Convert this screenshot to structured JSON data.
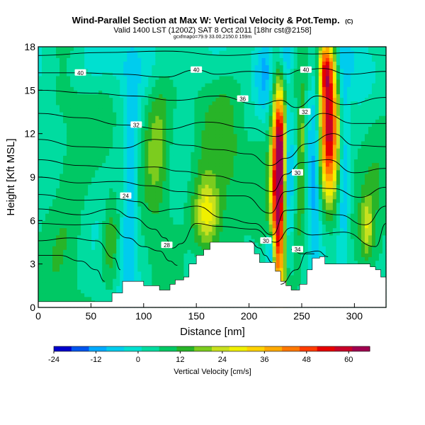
{
  "chart_data": {
    "type": "heatmap",
    "title": "Wind-Parallel Section at Max W: Vertical Velocity & Pot.Temp.",
    "title_mark": "(C)",
    "subtitle": "Valid 1400 LST (1200Z) SAT 8 Oct 2011 [18hr cst@2158]",
    "subtitle2": "gcxfmapo=79.9 33.00,2150.0 159m",
    "xlabel": "Distance [nm]",
    "ylabel": "Height [Kft MSL]",
    "xlim": [
      0,
      330
    ],
    "ylim": [
      0,
      18
    ],
    "xticks": [
      "0",
      "50",
      "100",
      "150",
      "200",
      "250",
      "300"
    ],
    "yticks": [
      "0",
      "3",
      "6",
      "9",
      "12",
      "15",
      "18"
    ],
    "colorbar": {
      "label": "Vertical Velocity [cm/s]",
      "range": [
        -24,
        66
      ],
      "ticks": [
        "-24",
        "-12",
        "0",
        "12",
        "24",
        "36",
        "48",
        "60"
      ],
      "colors": [
        "#0000cc",
        "#0055ee",
        "#00aaff",
        "#00ccee",
        "#00e0d0",
        "#00dca0",
        "#00c864",
        "#28b428",
        "#7ccc1e",
        "#c8e01e",
        "#f0f000",
        "#ffd200",
        "#ffaa00",
        "#ff7800",
        "#ff3c00",
        "#e60000",
        "#c80028",
        "#a00050"
      ]
    },
    "terrain": [
      [
        0,
        0.4
      ],
      [
        5,
        0.4
      ],
      [
        10,
        0.4
      ],
      [
        65,
        0.4
      ],
      [
        70,
        1.0
      ],
      [
        80,
        1.8
      ],
      [
        95,
        1.8
      ],
      [
        100,
        1.5
      ],
      [
        110,
        1.5
      ],
      [
        115,
        1.2
      ],
      [
        125,
        1.6
      ],
      [
        130,
        1.9
      ],
      [
        138,
        2.1
      ],
      [
        143,
        3.0
      ],
      [
        150,
        3.6
      ],
      [
        157,
        4.0
      ],
      [
        163,
        4.5
      ],
      [
        180,
        4.5
      ],
      [
        200,
        4.5
      ],
      [
        205,
        3.7
      ],
      [
        210,
        3.1
      ],
      [
        220,
        3.1
      ],
      [
        225,
        2.5
      ],
      [
        230,
        1.8
      ],
      [
        235,
        1.5
      ],
      [
        240,
        1.2
      ],
      [
        248,
        1.6
      ],
      [
        255,
        2.6
      ],
      [
        260,
        3.4
      ],
      [
        267,
        3.5
      ],
      [
        272,
        3.0
      ],
      [
        305,
        3.0
      ],
      [
        315,
        2.8
      ],
      [
        320,
        2.6
      ],
      [
        325,
        2.1
      ],
      [
        330,
        1.9
      ]
    ],
    "updrafts": [
      {
        "x": 228,
        "z": 7.5,
        "sx": 5,
        "sz": 4.5,
        "w": 62
      },
      {
        "x": 230,
        "z": 11.5,
        "sx": 4,
        "sz": 2.5,
        "w": 28
      },
      {
        "x": 276,
        "z": 12.2,
        "sx": 6,
        "sz": 3.5,
        "w": 50
      },
      {
        "x": 273,
        "z": 16.5,
        "sx": 5,
        "sz": 1.5,
        "w": 36
      },
      {
        "x": 250,
        "z": 11.5,
        "sx": 2.5,
        "sz": 2.5,
        "w": 16
      },
      {
        "x": 248,
        "z": 7,
        "sx": 3,
        "sz": 2,
        "w": 10
      },
      {
        "x": 160,
        "z": 6.3,
        "sx": 9,
        "sz": 1.8,
        "w": 26
      },
      {
        "x": 113,
        "z": 11,
        "sx": 9,
        "sz": 3.5,
        "w": 16
      },
      {
        "x": 68,
        "z": 4.5,
        "sx": 5,
        "sz": 2,
        "w": 12
      },
      {
        "x": 312,
        "z": 5.5,
        "sx": 4,
        "sz": 1.5,
        "w": 16
      },
      {
        "x": 30,
        "z": 9,
        "sx": 14,
        "sz": 6,
        "w": 7
      },
      {
        "x": 180,
        "z": 11,
        "sx": 25,
        "sz": 4,
        "w": 7
      },
      {
        "x": 320,
        "z": 12,
        "sx": 12,
        "sz": 4,
        "w": 7
      }
    ],
    "downdrafts": [
      {
        "x": 236,
        "z": 9,
        "sx": 3.5,
        "sz": 5,
        "w": -20
      },
      {
        "x": 221,
        "z": 3.8,
        "sx": 3,
        "sz": 1,
        "w": -26
      },
      {
        "x": 262,
        "z": 10,
        "sx": 4,
        "sz": 5,
        "w": -16
      },
      {
        "x": 290,
        "z": 10,
        "sx": 3.5,
        "sz": 5,
        "w": -14
      },
      {
        "x": 88,
        "z": 9,
        "sx": 5,
        "sz": 5,
        "w": -14
      },
      {
        "x": 82,
        "z": 4,
        "sx": 4,
        "sz": 2.5,
        "w": -8
      },
      {
        "x": 215,
        "z": 16,
        "sx": 6,
        "sz": 2,
        "w": -12
      },
      {
        "x": 235,
        "z": 17.5,
        "sx": 6,
        "sz": 1,
        "w": -12
      },
      {
        "x": 50,
        "z": 17,
        "sx": 30,
        "sz": 1.5,
        "w": -6
      },
      {
        "x": 140,
        "z": 17,
        "sx": 40,
        "sz": 1.5,
        "w": -4
      },
      {
        "x": 198,
        "z": 7.5,
        "sx": 6,
        "sz": 3,
        "w": -5
      },
      {
        "x": 300,
        "z": 16.5,
        "sx": 15,
        "sz": 2,
        "w": -8
      }
    ],
    "isentropes": [
      {
        "label": "40",
        "points": [
          [
            0,
            16.2
          ],
          [
            40,
            16.2
          ],
          [
            80,
            16.1
          ],
          [
            120,
            15.9
          ],
          [
            150,
            16.4
          ],
          [
            170,
            16.1
          ],
          [
            200,
            16.3
          ],
          [
            235,
            16.1
          ],
          [
            250,
            16.4
          ],
          [
            270,
            16.5
          ],
          [
            295,
            16.1
          ],
          [
            330,
            16.3
          ]
        ]
      },
      {
        "label": "",
        "points": [
          [
            0,
            17.4
          ],
          [
            60,
            17.6
          ],
          [
            120,
            17.7
          ],
          [
            180,
            17.4
          ],
          [
            230,
            17.6
          ],
          [
            260,
            17.5
          ],
          [
            300,
            17.6
          ],
          [
            330,
            17.4
          ]
        ]
      },
      {
        "label": "36",
        "points": [
          [
            0,
            15.0
          ],
          [
            50,
            14.8
          ],
          [
            90,
            14.6
          ],
          [
            130,
            14.3
          ],
          [
            170,
            14.6
          ],
          [
            210,
            14.0
          ],
          [
            230,
            14.3
          ],
          [
            245,
            13.8
          ],
          [
            265,
            14.6
          ],
          [
            290,
            14.0
          ],
          [
            330,
            14.5
          ]
        ]
      },
      {
        "label": "",
        "points": [
          [
            0,
            13.4
          ],
          [
            40,
            13.1
          ],
          [
            80,
            12.6
          ],
          [
            120,
            12.3
          ],
          [
            160,
            12.8
          ],
          [
            200,
            12.4
          ],
          [
            225,
            11.8
          ],
          [
            245,
            12.3
          ],
          [
            270,
            13.4
          ],
          [
            300,
            12.7
          ],
          [
            330,
            12.7
          ]
        ]
      },
      {
        "label": "32",
        "points": [
          [
            0,
            11.6
          ],
          [
            40,
            11.1
          ],
          [
            80,
            11.0
          ],
          [
            110,
            11.6
          ],
          [
            140,
            11.2
          ],
          [
            170,
            10.9
          ],
          [
            200,
            10.6
          ],
          [
            220,
            9.8
          ],
          [
            235,
            10.3
          ],
          [
            255,
            11.3
          ],
          [
            280,
            12.0
          ],
          [
            300,
            11.2
          ],
          [
            330,
            11.1
          ]
        ]
      },
      {
        "label": "",
        "points": [
          [
            0,
            10.2
          ],
          [
            40,
            9.8
          ],
          [
            80,
            9.6
          ],
          [
            110,
            9.7
          ],
          [
            135,
            9.4
          ],
          [
            165,
            9.1
          ],
          [
            200,
            8.6
          ],
          [
            222,
            8.0
          ],
          [
            235,
            9.2
          ],
          [
            250,
            10.0
          ],
          [
            275,
            10.2
          ],
          [
            300,
            9.3
          ],
          [
            330,
            9.6
          ]
        ]
      },
      {
        "label": "",
        "points": [
          [
            0,
            9.0
          ],
          [
            40,
            8.6
          ],
          [
            75,
            8.7
          ],
          [
            105,
            8.4
          ],
          [
            135,
            8.0
          ],
          [
            165,
            7.7
          ],
          [
            195,
            7.7
          ],
          [
            220,
            6.5
          ],
          [
            235,
            8.0
          ],
          [
            255,
            8.3
          ],
          [
            280,
            8.2
          ],
          [
            305,
            7.6
          ],
          [
            330,
            8.3
          ]
        ]
      },
      {
        "label": "24",
        "points": [
          [
            0,
            7.8
          ],
          [
            40,
            7.4
          ],
          [
            75,
            7.5
          ],
          [
            95,
            7.3
          ],
          [
            110,
            6.6
          ],
          [
            130,
            6.8
          ],
          [
            150,
            7.0
          ],
          [
            175,
            6.2
          ],
          [
            205,
            5.8
          ],
          [
            222,
            5.0
          ],
          [
            235,
            6.7
          ],
          [
            255,
            6.8
          ],
          [
            285,
            6.4
          ],
          [
            310,
            5.7
          ],
          [
            330,
            7.0
          ]
        ]
      },
      {
        "label": "",
        "points": [
          [
            0,
            6.8
          ],
          [
            40,
            6.4
          ],
          [
            70,
            6.8
          ],
          [
            90,
            6.2
          ],
          [
            110,
            5.4
          ],
          [
            120,
            4.8
          ],
          [
            128,
            4.1
          ],
          [
            135,
            4.4
          ],
          [
            150,
            5.8
          ],
          [
            170,
            5.6
          ],
          [
            205,
            5.4
          ],
          [
            225,
            4.5
          ],
          [
            240,
            5.5
          ],
          [
            260,
            5.0
          ],
          [
            290,
            5.2
          ],
          [
            320,
            4.2
          ],
          [
            330,
            5.8
          ]
        ]
      },
      {
        "label": "28",
        "points": [
          [
            0,
            5.8
          ],
          [
            35,
            5.7
          ],
          [
            65,
            5.8
          ],
          [
            85,
            4.8
          ],
          [
            100,
            4.2
          ],
          [
            115,
            3.9
          ],
          [
            125,
            3.2
          ],
          [
            132,
            2.9
          ]
        ]
      },
      {
        "label": "",
        "points": [
          [
            0,
            4.6
          ],
          [
            30,
            4.8
          ],
          [
            55,
            4.6
          ],
          [
            72,
            3.4
          ],
          [
            78,
            2.6
          ]
        ]
      },
      {
        "label": "",
        "points": [
          [
            0,
            3.6
          ],
          [
            20,
            3.6
          ],
          [
            40,
            3.2
          ],
          [
            55,
            2.6
          ],
          [
            63,
            1.8
          ]
        ]
      },
      {
        "label": "",
        "points": [
          [
            200,
            4.6
          ],
          [
            210,
            4.1
          ],
          [
            215,
            3.6
          ],
          [
            222,
            3.1
          ]
        ]
      },
      {
        "label": "",
        "points": [
          [
            230,
            1.6
          ],
          [
            245,
            2.6
          ],
          [
            255,
            3.8
          ],
          [
            265,
            3.9
          ],
          [
            275,
            3.5
          ]
        ]
      },
      {
        "label": "34",
        "points": [
          [
            240,
            4.0
          ],
          [
            250,
            3.7
          ],
          [
            262,
            3.7
          ]
        ]
      }
    ],
    "isentrope_labels": [
      {
        "text": "40",
        "x": 40,
        "z": 16.2
      },
      {
        "text": "40",
        "x": 150,
        "z": 16.4
      },
      {
        "text": "40",
        "x": 254,
        "z": 16.4
      },
      {
        "text": "36",
        "x": 194,
        "z": 14.4
      },
      {
        "text": "32",
        "x": 93,
        "z": 12.6
      },
      {
        "text": "32",
        "x": 253,
        "z": 13.5
      },
      {
        "text": "30",
        "x": 246,
        "z": 9.3
      },
      {
        "text": "24",
        "x": 83,
        "z": 7.7
      },
      {
        "text": "28",
        "x": 122,
        "z": 4.3
      },
      {
        "text": "30",
        "x": 216,
        "z": 4.6
      },
      {
        "text": "34",
        "x": 246,
        "z": 4.0
      }
    ]
  }
}
